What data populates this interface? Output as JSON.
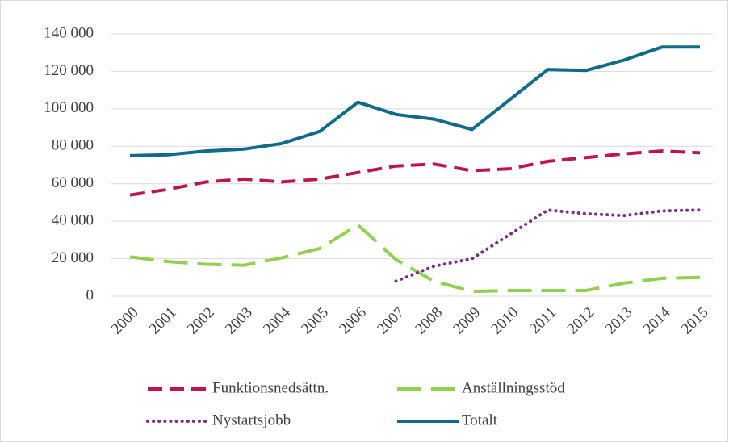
{
  "chart_data": {
    "type": "line",
    "categories": [
      "2000",
      "2001",
      "2002",
      "2003",
      "2004",
      "2005",
      "2006",
      "2007",
      "2008",
      "2009",
      "2010",
      "2011",
      "2012",
      "2013",
      "2014",
      "2015"
    ],
    "ylim": [
      0,
      140000
    ],
    "yticks": [
      0,
      {
        "value": 20000,
        "label": "20 000"
      },
      {
        "value": 40000,
        "label": "40 000"
      },
      {
        "value": 60000,
        "label": "60 000"
      },
      {
        "value": 80000,
        "label": "80 000"
      },
      {
        "value": 100000,
        "label": "100 000"
      },
      {
        "value": 120000,
        "label": "120 000"
      },
      {
        "value": 140000,
        "label": "140 000"
      }
    ],
    "grid": true,
    "legend": "bottom",
    "series": [
      {
        "name": "Funktionsnedsättn.",
        "color": "#c0144f",
        "style": "dashed",
        "values": [
          54000,
          57000,
          61000,
          62500,
          61000,
          62500,
          66000,
          69500,
          70500,
          67000,
          68000,
          72000,
          74000,
          76000,
          77500,
          76500
        ]
      },
      {
        "name": "Anställningsstöd",
        "color": "#92d050",
        "style": "long-dash",
        "values": [
          21000,
          18500,
          17000,
          16500,
          20500,
          25500,
          38000,
          19500,
          8000,
          2500,
          3000,
          3000,
          3000,
          7000,
          9500,
          10000
        ]
      },
      {
        "name": "Nystartsjobb",
        "color": "#7b2c83",
        "style": "dotted",
        "values": [
          null,
          null,
          null,
          null,
          null,
          null,
          null,
          8000,
          16000,
          20000,
          33000,
          46000,
          44000,
          43000,
          45500,
          46000
        ]
      },
      {
        "name": "Totalt",
        "color": "#0e6b8a",
        "style": "solid",
        "values": [
          75000,
          75500,
          77500,
          78500,
          81500,
          88000,
          103500,
          97000,
          94500,
          89000,
          105000,
          121000,
          120500,
          126000,
          133000,
          133000
        ]
      }
    ]
  }
}
